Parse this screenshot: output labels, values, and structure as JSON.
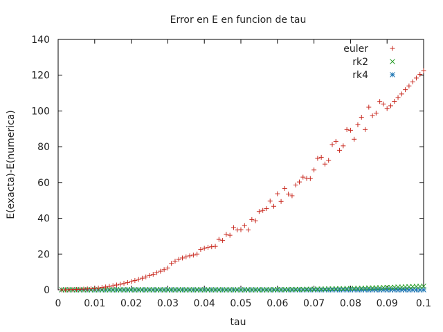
{
  "chart_data": {
    "type": "scatter",
    "title": "Error en E en funcion de tau",
    "xlabel": "tau",
    "ylabel": "E(exacta)-E(numerica)",
    "xlim": [
      0,
      0.1
    ],
    "ylim": [
      0,
      140
    ],
    "xticks": [
      0,
      0.01,
      0.02,
      0.03,
      0.04,
      0.05,
      0.06,
      0.07,
      0.08,
      0.09,
      0.1
    ],
    "xtick_labels": [
      "0",
      "0.01",
      "0.02",
      "0.03",
      "0.04",
      "0.05",
      "0.06",
      "0.07",
      "0.08",
      "0.09",
      "0.1"
    ],
    "yticks": [
      0,
      20,
      40,
      60,
      80,
      100,
      120,
      140
    ],
    "ytick_labels": [
      "0",
      "20",
      "40",
      "60",
      "80",
      "100",
      "120",
      "140"
    ],
    "grid": false,
    "legend_position": "top-right",
    "series": [
      {
        "name": "euler",
        "marker": "+",
        "color": "#c8281e",
        "x": [
          0.001,
          0.002,
          0.003,
          0.004,
          0.005,
          0.006,
          0.007,
          0.008,
          0.009,
          0.01,
          0.011,
          0.012,
          0.013,
          0.014,
          0.015,
          0.016,
          0.017,
          0.018,
          0.019,
          0.02,
          0.021,
          0.022,
          0.023,
          0.024,
          0.025,
          0.026,
          0.027,
          0.028,
          0.029,
          0.03,
          0.031,
          0.032,
          0.033,
          0.034,
          0.035,
          0.036,
          0.037,
          0.038,
          0.039,
          0.04,
          0.041,
          0.042,
          0.043,
          0.044,
          0.045,
          0.046,
          0.047,
          0.048,
          0.049,
          0.05,
          0.051,
          0.052,
          0.053,
          0.054,
          0.055,
          0.056,
          0.057,
          0.058,
          0.059,
          0.06,
          0.061,
          0.062,
          0.063,
          0.064,
          0.065,
          0.066,
          0.067,
          0.068,
          0.069,
          0.07,
          0.071,
          0.072,
          0.073,
          0.074,
          0.075,
          0.076,
          0.077,
          0.078,
          0.079,
          0.08,
          0.081,
          0.082,
          0.083,
          0.084,
          0.085,
          0.086,
          0.087,
          0.088,
          0.089,
          0.09,
          0.091,
          0.092,
          0.093,
          0.094,
          0.095,
          0.096,
          0.097,
          0.098,
          0.099,
          0.1
        ],
        "y": [
          0.0,
          0.0,
          0.1,
          0.1,
          0.2,
          0.3,
          0.4,
          0.5,
          0.6,
          0.8,
          1.0,
          1.3,
          1.6,
          1.9,
          2.3,
          2.7,
          3.1,
          3.6,
          4.1,
          4.6,
          5.2,
          5.8,
          6.5,
          7.2,
          8.0,
          8.7,
          9.5,
          10.4,
          11.3,
          12.2,
          14.8,
          16.0,
          17.0,
          17.8,
          18.4,
          19.0,
          19.4,
          20.0,
          22.6,
          23.2,
          23.8,
          24.1,
          24.3,
          28.2,
          27.6,
          31.0,
          30.5,
          34.8,
          33.5,
          33.6,
          35.9,
          33.5,
          39.3,
          38.6,
          43.8,
          44.4,
          45.4,
          49.6,
          46.7,
          53.7,
          49.4,
          56.7,
          53.5,
          52.6,
          58.6,
          60.3,
          63.0,
          62.3,
          62.2,
          67.0,
          73.5,
          74.1,
          70.3,
          72.4,
          81.2,
          83.0,
          78.0,
          80.5,
          89.6,
          89.2,
          84.2,
          92.3,
          96.5,
          89.6,
          102.1,
          97.3,
          98.8,
          105.3,
          103.9,
          101.4,
          102.9,
          105.4,
          107.5,
          109.5,
          111.9,
          114.0,
          116.3,
          118.4,
          120.5,
          122.5
        ]
      },
      {
        "name": "rk2",
        "marker": "x",
        "color": "#2ca02c",
        "x": [
          0.001,
          0.002,
          0.003,
          0.004,
          0.005,
          0.006,
          0.007,
          0.008,
          0.009,
          0.01,
          0.011,
          0.012,
          0.013,
          0.014,
          0.015,
          0.016,
          0.017,
          0.018,
          0.019,
          0.02,
          0.021,
          0.022,
          0.023,
          0.024,
          0.025,
          0.026,
          0.027,
          0.028,
          0.029,
          0.03,
          0.031,
          0.032,
          0.033,
          0.034,
          0.035,
          0.036,
          0.037,
          0.038,
          0.039,
          0.04,
          0.041,
          0.042,
          0.043,
          0.044,
          0.045,
          0.046,
          0.047,
          0.048,
          0.049,
          0.05,
          0.051,
          0.052,
          0.053,
          0.054,
          0.055,
          0.056,
          0.057,
          0.058,
          0.059,
          0.06,
          0.061,
          0.062,
          0.063,
          0.064,
          0.065,
          0.066,
          0.067,
          0.068,
          0.069,
          0.07,
          0.071,
          0.072,
          0.073,
          0.074,
          0.075,
          0.076,
          0.077,
          0.078,
          0.079,
          0.08,
          0.081,
          0.082,
          0.083,
          0.084,
          0.085,
          0.086,
          0.087,
          0.088,
          0.089,
          0.09,
          0.091,
          0.092,
          0.093,
          0.094,
          0.095,
          0.096,
          0.097,
          0.098,
          0.099,
          0.1
        ],
        "y": [
          0,
          0,
          0,
          0,
          0,
          0,
          0,
          0,
          0,
          0,
          0,
          0,
          0,
          0,
          0,
          0,
          0,
          0,
          0,
          0,
          0,
          0,
          0,
          0,
          0,
          0,
          0,
          0,
          0,
          0,
          0,
          0,
          0,
          0,
          0,
          0,
          0,
          0,
          0,
          0,
          0,
          0,
          0,
          0,
          0,
          0,
          0,
          0,
          0,
          0,
          0,
          0,
          0,
          0,
          0,
          0,
          0,
          0,
          0.1,
          0.1,
          0.1,
          0.1,
          0.1,
          0.2,
          0.2,
          0.2,
          0.2,
          0.3,
          0.3,
          0.3,
          0.4,
          0.4,
          0.4,
          0.5,
          0.5,
          0.6,
          0.6,
          0.6,
          0.7,
          0.7,
          0.8,
          0.8,
          0.9,
          0.9,
          1.0,
          1.0,
          1.1,
          1.1,
          1.2,
          1.3,
          1.3,
          1.4,
          1.5,
          1.5,
          1.6,
          1.7,
          1.8,
          1.9,
          1.9,
          2.0
        ]
      },
      {
        "name": "rk4",
        "marker": "*",
        "color": "#1f77b4",
        "x": [
          0.001,
          0.002,
          0.003,
          0.004,
          0.005,
          0.006,
          0.007,
          0.008,
          0.009,
          0.01,
          0.011,
          0.012,
          0.013,
          0.014,
          0.015,
          0.016,
          0.017,
          0.018,
          0.019,
          0.02,
          0.021,
          0.022,
          0.023,
          0.024,
          0.025,
          0.026,
          0.027,
          0.028,
          0.029,
          0.03,
          0.031,
          0.032,
          0.033,
          0.034,
          0.035,
          0.036,
          0.037,
          0.038,
          0.039,
          0.04,
          0.041,
          0.042,
          0.043,
          0.044,
          0.045,
          0.046,
          0.047,
          0.048,
          0.049,
          0.05,
          0.051,
          0.052,
          0.053,
          0.054,
          0.055,
          0.056,
          0.057,
          0.058,
          0.059,
          0.06,
          0.061,
          0.062,
          0.063,
          0.064,
          0.065,
          0.066,
          0.067,
          0.068,
          0.069,
          0.07,
          0.071,
          0.072,
          0.073,
          0.074,
          0.075,
          0.076,
          0.077,
          0.078,
          0.079,
          0.08,
          0.081,
          0.082,
          0.083,
          0.084,
          0.085,
          0.086,
          0.087,
          0.088,
          0.089,
          0.09,
          0.091,
          0.092,
          0.093,
          0.094,
          0.095,
          0.096,
          0.097,
          0.098,
          0.099,
          0.1
        ],
        "y": [
          0,
          0,
          0,
          0,
          0,
          0,
          0,
          0,
          0,
          0,
          0,
          0,
          0,
          0,
          0,
          0,
          0,
          0,
          0,
          0,
          0,
          0,
          0,
          0,
          0,
          0,
          0,
          0,
          0,
          0,
          0,
          0,
          0,
          0,
          0,
          0,
          0,
          0,
          0,
          0,
          0,
          0,
          0,
          0,
          0,
          0,
          0,
          0,
          0,
          0,
          0,
          0,
          0,
          0,
          0,
          0,
          0,
          0,
          0,
          0,
          0,
          0,
          0,
          0,
          0,
          0,
          0,
          0,
          0,
          0,
          0,
          0,
          0,
          0,
          0,
          0,
          0,
          0,
          0,
          0,
          0,
          0,
          0,
          0,
          0,
          0,
          0,
          0,
          0,
          0,
          0,
          0,
          0,
          0,
          0,
          0,
          0,
          0,
          0,
          0
        ]
      }
    ]
  }
}
